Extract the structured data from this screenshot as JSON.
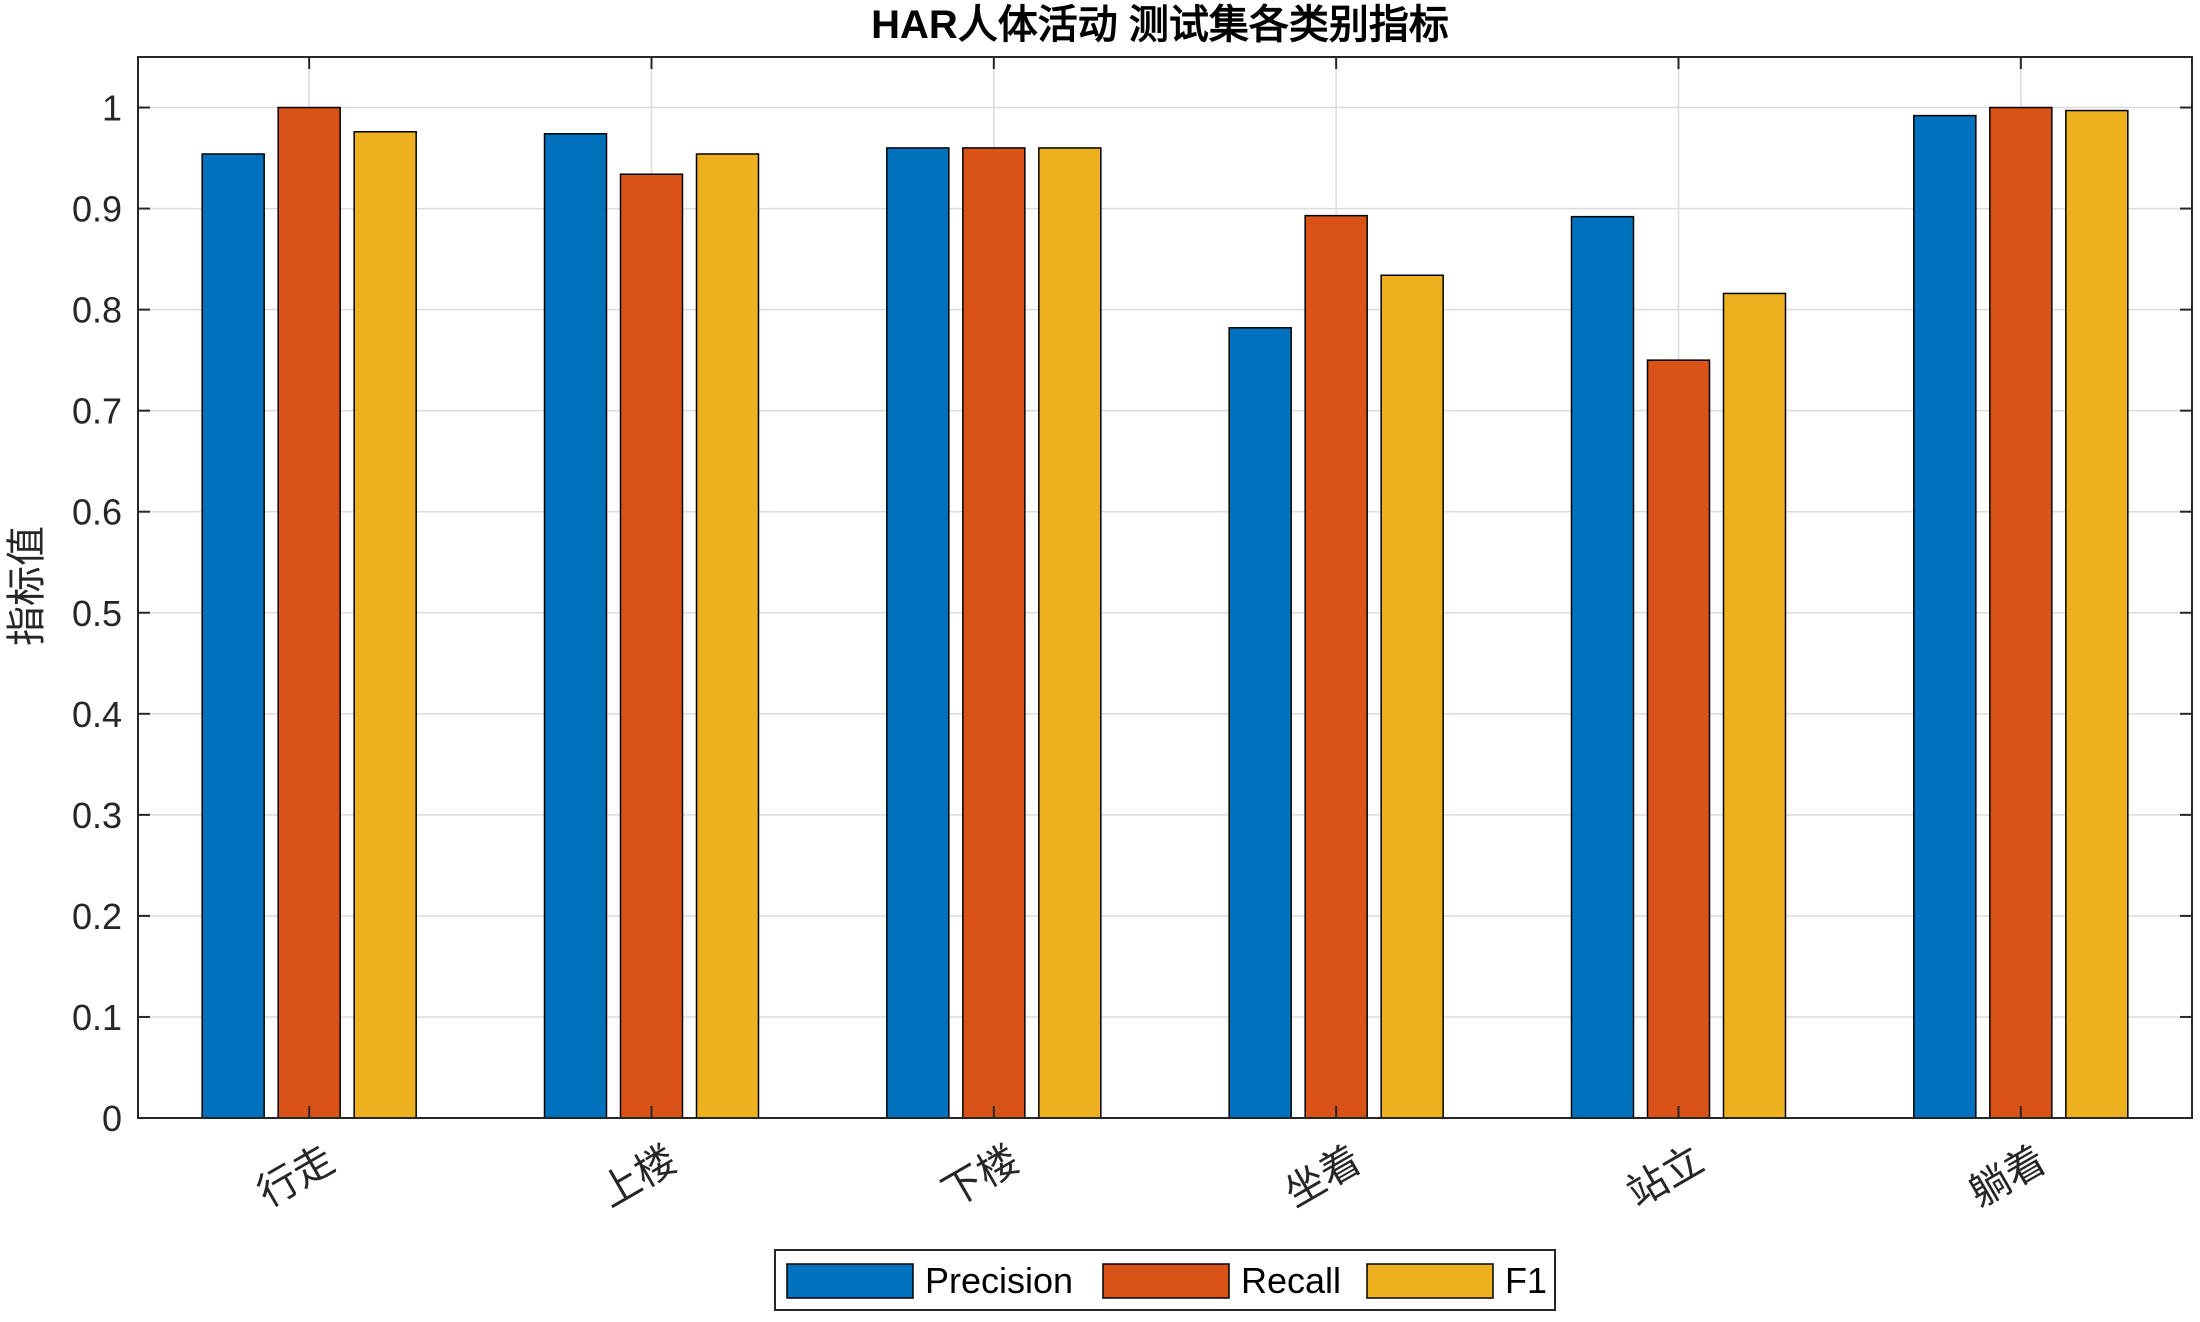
{
  "chart_data": {
    "type": "bar",
    "title": "HAR人体活动 测试集各类别指标",
    "xlabel": "",
    "ylabel": "指标值",
    "categories": [
      "行走",
      "上楼",
      "下楼",
      "坐着",
      "站立",
      "躺着"
    ],
    "series": [
      {
        "name": "Precision",
        "color": "#0072BD",
        "values": [
          0.954,
          0.974,
          0.96,
          0.782,
          0.892,
          0.992
        ]
      },
      {
        "name": "Recall",
        "color": "#D95319",
        "values": [
          1.0,
          0.934,
          0.96,
          0.893,
          0.75,
          1.0
        ]
      },
      {
        "name": "F1",
        "color": "#EDB120",
        "values": [
          0.976,
          0.954,
          0.96,
          0.834,
          0.816,
          0.997
        ]
      }
    ],
    "ylim": [
      0,
      1.05
    ],
    "yticks": [
      0,
      0.1,
      0.2,
      0.3,
      0.4,
      0.5,
      0.6,
      0.7,
      0.8,
      0.9,
      1
    ],
    "ytick_labels": [
      "0",
      "0.1",
      "0.2",
      "0.3",
      "0.4",
      "0.5",
      "0.6",
      "0.7",
      "0.8",
      "0.9",
      "1"
    ],
    "grid": true,
    "legend_position": "bottom-center",
    "legend_orientation": "horizontal"
  }
}
